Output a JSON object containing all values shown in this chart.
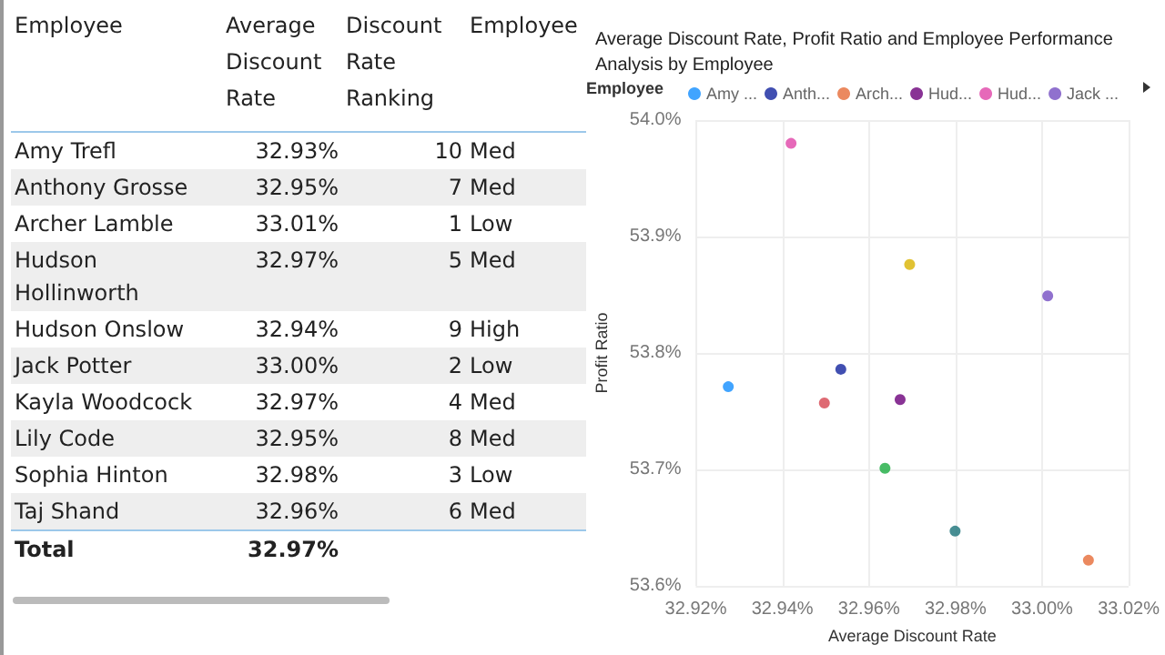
{
  "chart_data": [
    {
      "type": "other",
      "categories": [
        "Employee",
        "Average Discount Rate",
        "Discount Rate Ranking",
        "Employee"
      ],
      "cell_labels": [
        [
          "Amy Trefl",
          "32.93%",
          "10",
          "Med"
        ],
        [
          "Anthony Grosse",
          "32.95%",
          "7",
          "Med"
        ],
        [
          "Archer Lamble",
          "33.01%",
          "1",
          "Low"
        ],
        [
          "Hudson Hollinworth",
          "32.97%",
          "5",
          "Med"
        ],
        [
          "Hudson Onslow",
          "32.94%",
          "9",
          "High"
        ],
        [
          "Jack Potter",
          "33.00%",
          "2",
          "Low"
        ],
        [
          "Kayla Woodcock",
          "32.97%",
          "4",
          "Med"
        ],
        [
          "Lily Code",
          "32.95%",
          "8",
          "Med"
        ],
        [
          "Sophia Hinton",
          "32.98%",
          "3",
          "Low"
        ],
        [
          "Taj Shand",
          "32.96%",
          "6",
          "Med"
        ],
        [
          "Total",
          "32.97%",
          null,
          null
        ]
      ]
    },
    {
      "type": "scatter",
      "title": "Average Discount Rate, Profit Ratio and Employee Performance Analysis by Employee",
      "xlabel": "Average Discount Rate",
      "ylabel": "Profit Ratio",
      "legend_title": "Employee",
      "legend": "top left",
      "grid": true,
      "marker": "circle",
      "xlim": [
        32.92,
        33.02
      ],
      "xticks": [
        {
          "value": 32.92,
          "label": "32.92%"
        },
        {
          "value": 32.94,
          "label": "32.94%"
        },
        {
          "value": 32.96,
          "label": "32.96%"
        },
        {
          "value": 32.98,
          "label": "32.98%"
        },
        {
          "value": 33.0,
          "label": "33.00%"
        },
        {
          "value": 33.02,
          "label": "33.02%"
        }
      ],
      "ylim": [
        53.6,
        54.0
      ],
      "yticks": [
        {
          "value": 53.6,
          "label": "53.6%"
        },
        {
          "value": 53.7,
          "label": "53.7%"
        },
        {
          "value": 53.8,
          "label": "53.8%"
        },
        {
          "value": 53.9,
          "label": "53.9%"
        },
        {
          "value": 54.0,
          "label": "54.0%"
        }
      ],
      "series": [
        {
          "name": "Amy ...",
          "color": "#118dff",
          "x": [
            32.9275
          ],
          "values": [
            53.771
          ]
        },
        {
          "name": "Anth...",
          "color": "#12239e",
          "x": [
            32.9535
          ],
          "values": [
            53.786
          ]
        },
        {
          "name": "Arch...",
          "color": "#e66c37",
          "x": [
            33.0107
          ],
          "values": [
            53.622
          ]
        },
        {
          "name": "Hud...",
          "color": "#6b007b",
          "x": [
            32.9672
          ],
          "values": [
            53.76
          ]
        },
        {
          "name": "Hud...",
          "color": "#e044a7",
          "x": [
            32.942
          ],
          "values": [
            53.98
          ]
        },
        {
          "name": "Jack ...",
          "color": "#744ec2",
          "x": [
            33.0013
          ],
          "values": [
            53.849
          ]
        },
        {
          "color": "#d9b300",
          "x": [
            32.9694
          ],
          "values": [
            53.876
          ]
        },
        {
          "color": "#d64550",
          "x": [
            32.9497
          ],
          "values": [
            53.757
          ]
        },
        {
          "color": "#197278",
          "x": [
            32.9799
          ],
          "values": [
            53.647
          ]
        },
        {
          "color": "#1aab40",
          "x": [
            32.9637
          ],
          "values": [
            53.701
          ]
        }
      ]
    }
  ]
}
